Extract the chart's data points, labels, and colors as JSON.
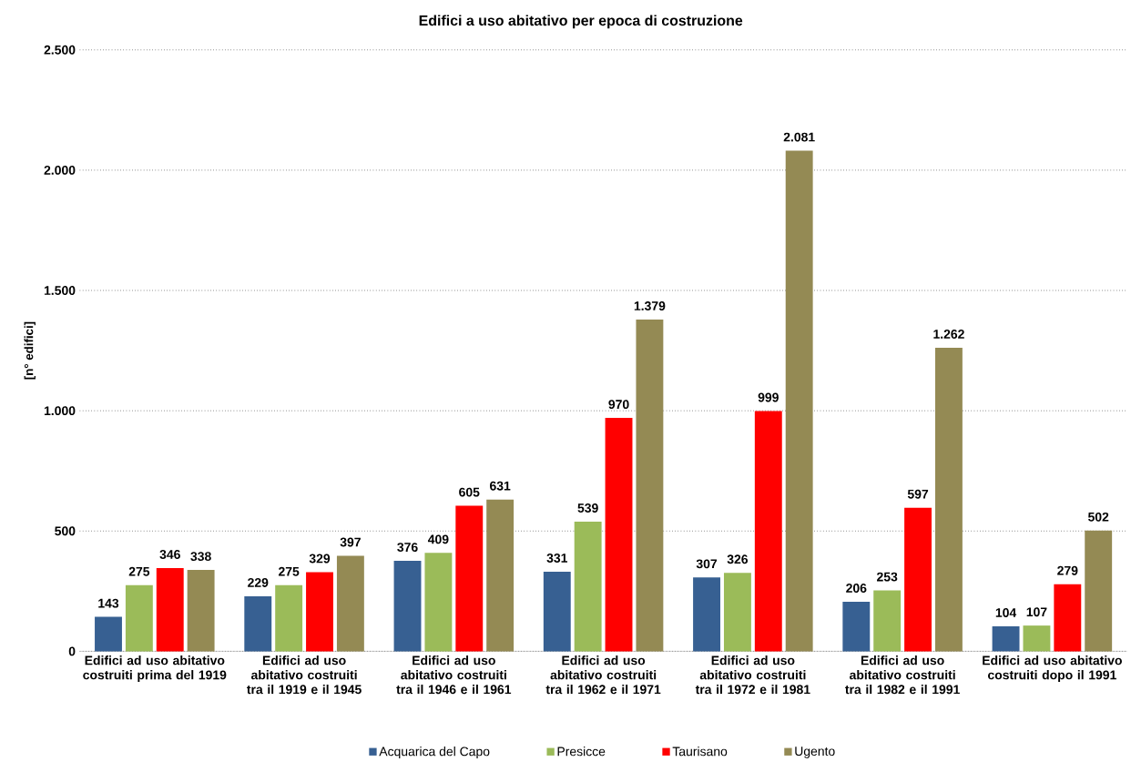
{
  "chart_data": {
    "type": "bar",
    "title": "Edifici a uso abitativo per epoca di costruzione",
    "ylabel": "[n° edifici]",
    "categories": [
      "Edifici ad uso abitativo costruiti prima del 1919",
      "Edifici ad uso abitativo costruiti tra il 1919 e il 1945",
      "Edifici ad uso abitativo costruiti tra il 1946 e il 1961",
      "Edifici ad uso abitativo costruiti tra il 1962 e il 1971",
      "Edifici ad uso abitativo costruiti tra il 1972 e il 1981",
      "Edifici ad uso abitativo costruiti tra il 1982 e il 1991",
      "Edifici ad uso abitativo costruiti dopo il 1991"
    ],
    "series": [
      {
        "name": "Acquarica del Capo",
        "color": "#376092",
        "values": [
          143,
          229,
          376,
          331,
          307,
          206,
          104
        ],
        "value_labels": [
          "143",
          "229",
          "376",
          "331",
          "307",
          "206",
          "104"
        ]
      },
      {
        "name": "Presicce",
        "color": "#9bbb59",
        "values": [
          275,
          275,
          409,
          539,
          326,
          253,
          107
        ],
        "value_labels": [
          "275",
          "275",
          "409",
          "539",
          "326",
          "253",
          "107"
        ]
      },
      {
        "name": "Taurisano",
        "color": "#ff0000",
        "values": [
          346,
          329,
          605,
          970,
          999,
          597,
          279
        ],
        "value_labels": [
          "346",
          "329",
          "605",
          "970",
          "999",
          "597",
          "279"
        ]
      },
      {
        "name": "Ugento",
        "color": "#948a54",
        "values": [
          338,
          397,
          631,
          1379,
          2081,
          1262,
          502
        ],
        "value_labels": [
          "338",
          "397",
          "631",
          "1.379",
          "2.081",
          "1.262",
          "502"
        ]
      }
    ],
    "ylim": [
      0,
      2500
    ],
    "yticks": [
      {
        "value": 0,
        "label": "0"
      },
      {
        "value": 500,
        "label": "500"
      },
      {
        "value": 1000,
        "label": "1.000"
      },
      {
        "value": 1500,
        "label": "1.500"
      },
      {
        "value": 2000,
        "label": "2.000"
      },
      {
        "value": 2500,
        "label": "2.500"
      }
    ],
    "grid": "y",
    "legend": "bottom"
  }
}
